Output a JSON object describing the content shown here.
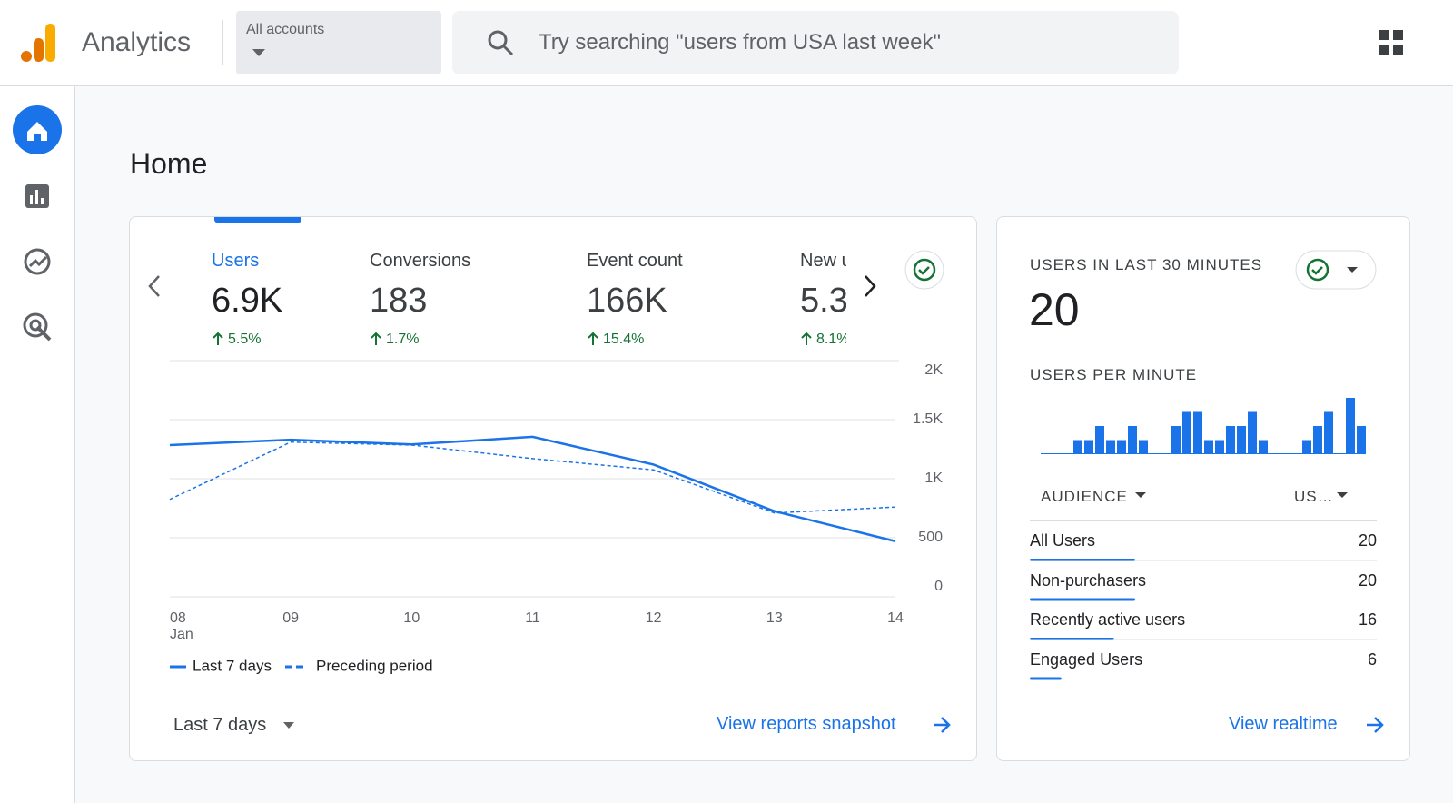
{
  "header": {
    "app_name": "Analytics",
    "account_selector": "All accounts",
    "search_placeholder": "Try searching \"users from USA last week\""
  },
  "page_title": "Home",
  "metrics": [
    {
      "label": "Users",
      "value": "6.9K",
      "change": "5.5%"
    },
    {
      "label": "Conversions",
      "value": "183",
      "change": "1.7%"
    },
    {
      "label": "Event count",
      "value": "166K",
      "change": "15.4%"
    },
    {
      "label": "New u",
      "value": "5.3",
      "change": "8.1%"
    }
  ],
  "date_range": "Last 7 days",
  "report_link": "View reports snapshot",
  "realtime": {
    "title": "USERS IN LAST 30 MINUTES",
    "value": "20",
    "per_minute_title": "USERS PER MINUTE",
    "link": "View realtime"
  },
  "audience": {
    "headers": [
      "AUDIENCE",
      "US…"
    ],
    "rows": [
      {
        "name": "All Users",
        "users": 20
      },
      {
        "name": "Non-purchasers",
        "users": 20
      },
      {
        "name": "Recently active users",
        "users": 16
      },
      {
        "name": "Engaged Users",
        "users": 6
      }
    ]
  },
  "chart_data": [
    {
      "type": "line",
      "x": [
        "08",
        "09",
        "10",
        "11",
        "12",
        "13",
        "14"
      ],
      "x_month": "Jan",
      "ylim": [
        0,
        2000
      ],
      "yticks": [
        0,
        500,
        {
          "value": 1000,
          "label": "1K"
        },
        {
          "value": 1500,
          "label": "1.5K"
        },
        {
          "value": 2000,
          "label": "2K"
        }
      ],
      "grid": true,
      "series": [
        {
          "name": "Last 7 days",
          "color": "#1a73e8",
          "dashed": false,
          "values": [
            1285,
            1330,
            1290,
            1355,
            1120,
            725,
            470
          ]
        },
        {
          "name": "Preceding period",
          "color": "#1a73e8",
          "dashed": true,
          "values": [
            825,
            1310,
            1285,
            1170,
            1075,
            710,
            760
          ]
        }
      ]
    },
    {
      "type": "bar",
      "color": "#1a73e8",
      "ylim": [
        0,
        4
      ],
      "values": [
        0,
        0,
        0,
        1,
        1,
        2,
        1,
        1,
        2,
        1,
        0,
        0,
        2,
        3,
        3,
        1,
        1,
        2,
        2,
        3,
        1,
        0,
        0,
        0,
        1,
        2,
        3,
        0,
        4,
        2
      ]
    }
  ]
}
